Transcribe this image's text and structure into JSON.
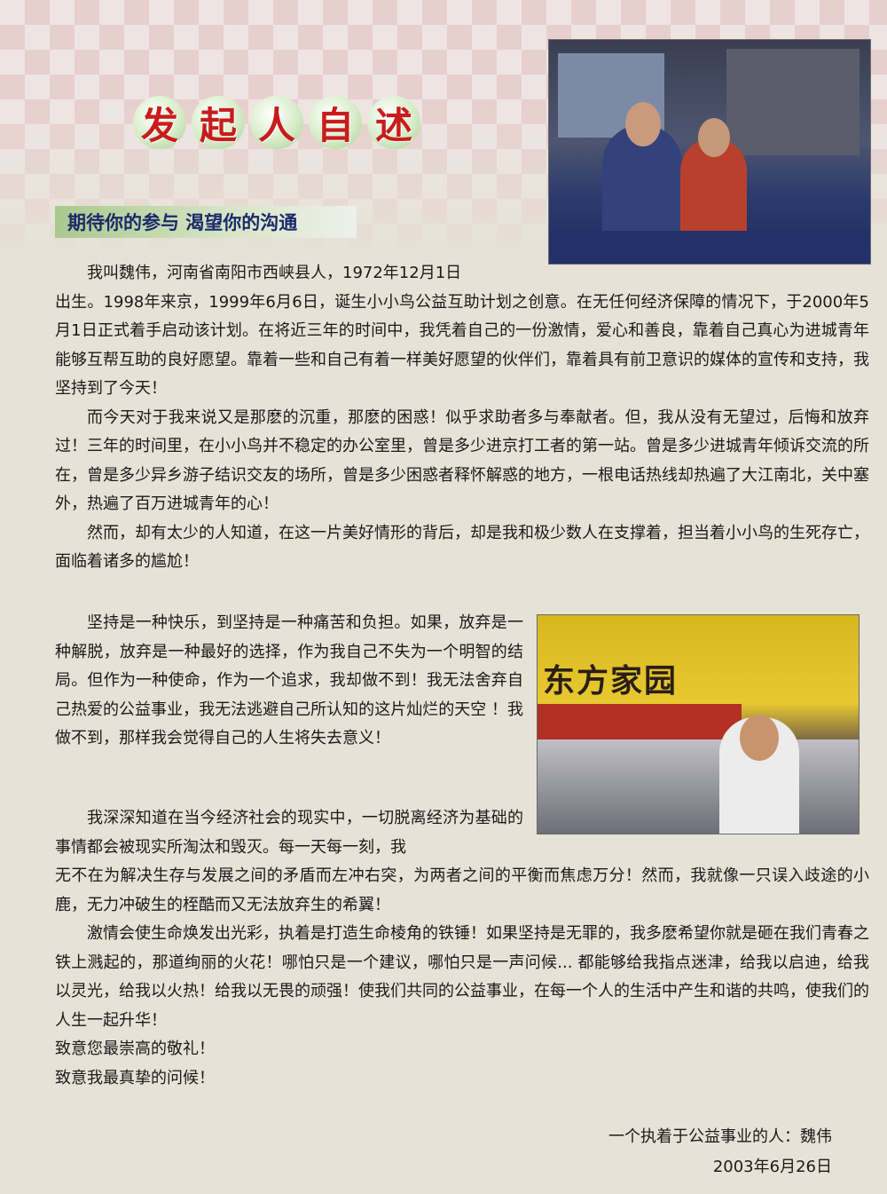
{
  "title": [
    "发",
    "起",
    "人",
    "自",
    "述"
  ],
  "subtitle": "期待你的参与  渴望你的沟通",
  "photo2_sign": "东方家园",
  "paragraphs": {
    "p1_first": "我叫魏伟，河南省南阳市西峡县人，1972年12月1日",
    "p1_rest": "出生。1998年来京，1999年6月6日，诞生小小鸟公益互助计划之创意。在无任何经济保障的情况下，于2000年5月1日正式着手启动该计划。在将近三年的时间中，我凭着自己的一份激情，爱心和善良，靠着自己真心为进城青年能够互帮互助的良好愿望。靠着一些和自己有着一样美好愿望的伙伴们，靠着具有前卫意识的媒体的宣传和支持，我坚持到了今天！",
    "p2": "而今天对于我来说又是那麽的沉重，那麽的困惑！似乎求助者多与奉献者。但，我从没有无望过，后悔和放弃过！三年的时间里，在小小鸟并不稳定的办公室里，曾是多少进京打工者的第一站。曾是多少进城青年倾诉交流的所在，曾是多少异乡游子结识交友的场所，曾是多少困惑者释怀解惑的地方，一根电话热线却热遍了大江南北，关中塞外，热遍了百万进城青年的心！",
    "p3": "然而，却有太少的人知道，在这一片美好情形的背后，却是我和极少数人在支撑着，担当着小小鸟的生死存亡，面临着诸多的尴尬！",
    "p4": "坚持是一种快乐，到坚持是一种痛苦和负担。如果，放弃是一种解脱，放弃是一种最好的选择，作为我自己不失为一个明智的结局。但作为一种使命，作为一个追求，我却做不到！我无法舍弃自己热爱的公益事业，我无法逃避自己所认知的这片灿烂的天空 ！我做不到，那样我会觉得自己的人生将失去意义！",
    "p5_first": "我深深知道在当今经济社会的现实中，一切脱离经济为基础的事情都会被现实所淘汰和毁灭。每一天每一刻，我",
    "p5_rest": "无不在为解决生存与发展之间的矛盾而左冲右突，为两者之间的平衡而焦虑万分！然而，我就像一只误入歧途的小鹿，无力冲破生的桎酷而又无法放弃生的希翼！",
    "p6": "激情会使生命焕发出光彩，执着是打造生命棱角的铁锤！如果坚持是无罪的，我多麽希望你就是砸在我们青春之铁上溅起的，那道绚丽的火花！哪怕只是一个建议，哪怕只是一声问候... 都能够给我指点迷津，给我以启迪，给我以灵光，给我以火热！给我以无畏的顽强！使我们共同的公益事业，在每一个人的生活中产生和谐的共鸣，使我们的人生一起升华！",
    "closing1": "致意您最崇高的敬礼！",
    "closing2": "致意我最真挚的问候！"
  },
  "signature": "一个执着于公益事业的人：魏伟",
  "date": "2003年6月26日"
}
